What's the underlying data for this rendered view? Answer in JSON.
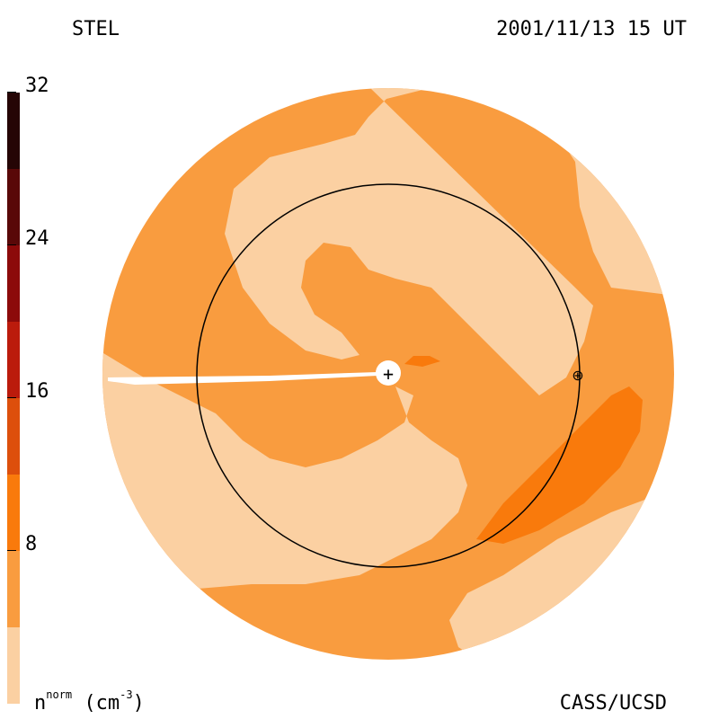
{
  "header": {
    "station": "STEL",
    "datetime": "2001/11/13 15 UT"
  },
  "footer": {
    "quantity": "n",
    "quantity_sup": "norm",
    "unit_open": "(cm",
    "unit_sup": "-3",
    "unit_close": ")",
    "credit": "CASS/UCSD"
  },
  "colorbar": {
    "levels": [
      "#fbd0a2",
      "#f99c3f",
      "#f97a0c",
      "#dd4f0c",
      "#bb1b0c",
      "#8c0a0a",
      "#590808",
      "#250505"
    ],
    "ticks": [
      "8",
      "16",
      "24",
      "32"
    ]
  },
  "markers": {
    "sun_symbol": "+",
    "earth_symbol": "⊕"
  }
}
